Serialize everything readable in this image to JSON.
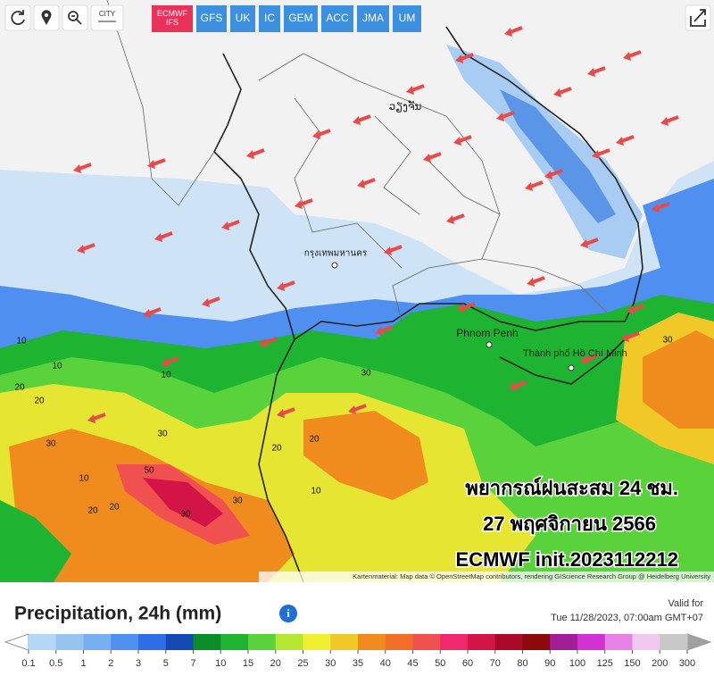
{
  "toolbar": {
    "city": "CITY",
    "models": [
      "ECMWF IFS",
      "GFS",
      "UK",
      "IC",
      "GEM",
      "ACC",
      "JMA",
      "UM"
    ],
    "active_model": 0
  },
  "map": {
    "places": [
      "Phnom Penh",
      "Thành phố Hồ Chí Minh",
      "กรุงเทพมหานคร",
      "ວຽງຈັນ"
    ],
    "contour_labels": [
      "10",
      "20",
      "30",
      "10",
      "20",
      "50",
      "30",
      "20",
      "10",
      "30",
      "20",
      "30",
      "10",
      "20",
      "30",
      "30",
      "10",
      "20"
    ],
    "overlay": [
      "พยากรณ์ฝนสะสม 24 ชม.",
      "27 พฤศจิกายน 2566",
      "ECMWF init.2023112212"
    ],
    "attribution": "Kartenmaterial: Map data © OpenStreetMap contributors, rendering GIScience Research Group @ Heidelberg University"
  },
  "legend": {
    "title": "Precipitation, 24h (mm)",
    "valid_label": "Valid for",
    "valid_time": "Tue 11/28/2023, 07:00am GMT+07",
    "ticks": [
      0.1,
      0.5,
      1,
      2,
      3,
      5,
      7,
      10,
      15,
      20,
      25,
      30,
      35,
      40,
      45,
      50,
      60,
      70,
      80,
      90,
      100,
      125,
      150,
      200,
      300
    ],
    "colors": [
      "#b4d7f5",
      "#96c3f0",
      "#78aff0",
      "#4f8ff0",
      "#2d6ee6",
      "#1449b4",
      "#0a8c28",
      "#1eb432",
      "#5ad23c",
      "#b4e632",
      "#f0f032",
      "#f0c828",
      "#f08c1e",
      "#f06e28",
      "#f05050",
      "#f0286e",
      "#d21446",
      "#aa0a28",
      "#8c0a0a",
      "#a01e96",
      "#d232d2",
      "#e682e6",
      "#f0c8f0",
      "#c8c8c8"
    ],
    "low_color": "#ffffff",
    "high_color": "#a0a0a0"
  }
}
